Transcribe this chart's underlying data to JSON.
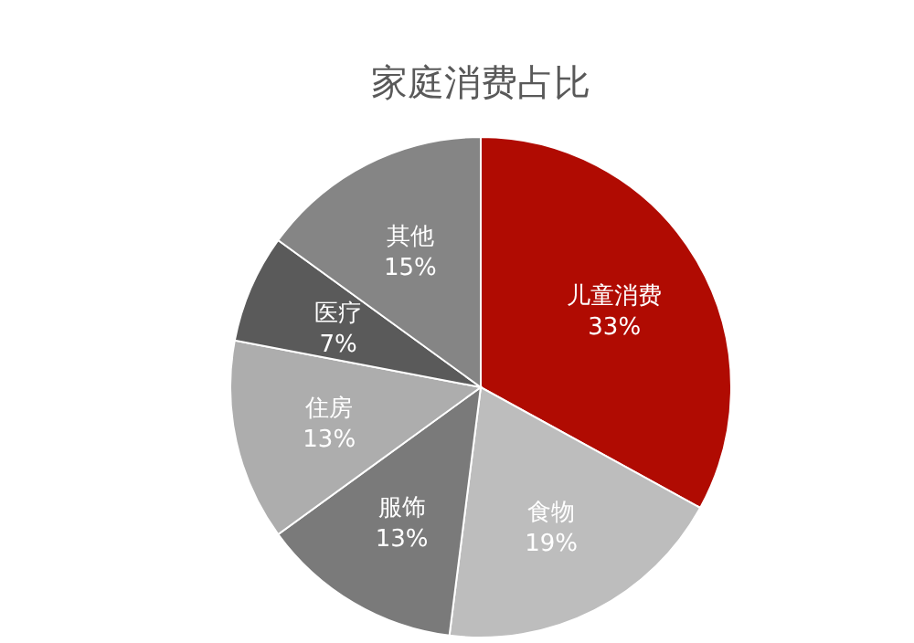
{
  "chart_data": {
    "type": "pie",
    "title": "家庭消费占比",
    "categories": [
      "儿童消费",
      "食物",
      "服饰",
      "住房",
      "医疗",
      "其他"
    ],
    "values": [
      33,
      19,
      13,
      13,
      7,
      15
    ],
    "value_labels": [
      "33%",
      "19%",
      "13%",
      "13%",
      "7%",
      "15%"
    ],
    "colors": [
      "#b00b02",
      "#bdbdbd",
      "#7a7a7a",
      "#adadad",
      "#5a5a5a",
      "#858585"
    ]
  }
}
